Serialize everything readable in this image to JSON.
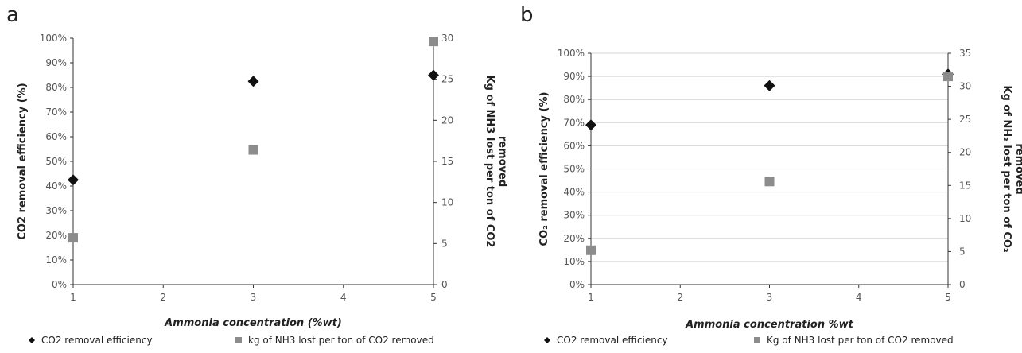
{
  "chart_data": [
    {
      "panel": "a",
      "type": "scatter",
      "xlabel": "Ammonia concentration (%wt)",
      "ylabel": "CO2 removal efficiency (%)",
      "y2label": [
        "Kg of NH3 lost per ton of CO2",
        "removed"
      ],
      "xlim": [
        1,
        5
      ],
      "xticks": [
        "1",
        "2",
        "3",
        "4",
        "5"
      ],
      "ylim": [
        0,
        100
      ],
      "yticks": [
        "0%",
        "10%",
        "20%",
        "30%",
        "40%",
        "50%",
        "60%",
        "70%",
        "80%",
        "90%",
        "100%"
      ],
      "y2lim": [
        0,
        30
      ],
      "y2ticks": [
        "0",
        "5",
        "10",
        "15",
        "20",
        "25",
        "30"
      ],
      "grid": false,
      "legend_position": "bottom",
      "series": [
        {
          "name": "CO2 removal efficiency",
          "axis": "left",
          "marker": "diamond",
          "color": "#111111",
          "x": [
            1,
            3,
            5
          ],
          "y": [
            42.5,
            82.5,
            85
          ]
        },
        {
          "name": "kg of NH3 lost per ton of CO2 removed",
          "axis": "right",
          "marker": "square",
          "color": "#8c8c8c",
          "x": [
            1,
            3,
            5
          ],
          "y": [
            5.7,
            16.4,
            29.6
          ]
        }
      ]
    },
    {
      "panel": "b",
      "type": "scatter",
      "xlabel": "Ammonia concentration %wt",
      "ylabel": "CO₂ removal efficiency (%)",
      "y2label": [
        "Kg of NH₃ lost per ton of CO₂",
        "removed"
      ],
      "xlim": [
        1,
        5
      ],
      "xticks": [
        "1",
        "2",
        "3",
        "4",
        "5"
      ],
      "ylim": [
        0,
        100
      ],
      "yticks": [
        "0%",
        "10%",
        "20%",
        "30%",
        "40%",
        "50%",
        "60%",
        "70%",
        "80%",
        "90%",
        "100%"
      ],
      "y2lim": [
        0,
        35
      ],
      "y2ticks": [
        "0",
        "5",
        "10",
        "15",
        "20",
        "25",
        "30",
        "35"
      ],
      "grid": true,
      "legend_position": "bottom",
      "series": [
        {
          "name": "CO2 removal efficiency",
          "axis": "left",
          "marker": "diamond",
          "color": "#111111",
          "x": [
            1,
            3,
            5
          ],
          "y": [
            69,
            86,
            91
          ]
        },
        {
          "name": "Kg of NH3 lost per ton of CO2 removed",
          "axis": "right",
          "marker": "square",
          "color": "#8c8c8c",
          "x": [
            1,
            3,
            5
          ],
          "y": [
            5.2,
            15.6,
            31.5
          ]
        }
      ]
    }
  ]
}
